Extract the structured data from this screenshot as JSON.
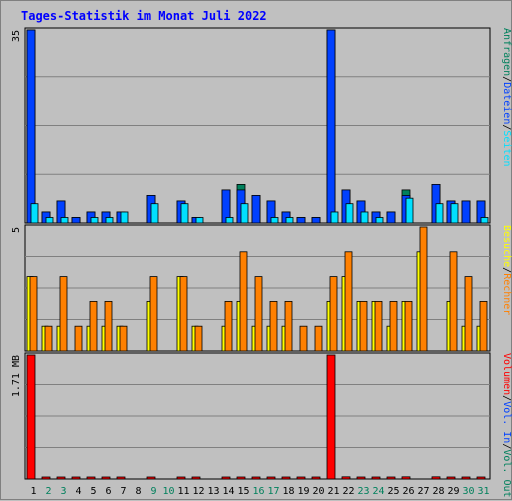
{
  "title": "Tages-Statistik im Monat Juli 2022",
  "colors": {
    "background": "#c0c0c0",
    "grid": "#808080",
    "hits": "#00805c",
    "files": "#0040ff",
    "pages": "#00e0ff",
    "visits": "#ffff00",
    "sites": "#ff8000",
    "kbytes": "#ff0000",
    "day_normal": "#000000",
    "day_weekend": "#00805c",
    "sep": "#000000"
  },
  "top_panel": {
    "ymax_label": "35",
    "legend": [
      {
        "text": "Anfragen",
        "color": "#00805c"
      },
      {
        "text": "/",
        "color": "#000000"
      },
      {
        "text": "Dateien",
        "color": "#0040ff"
      },
      {
        "text": "/",
        "color": "#000000"
      },
      {
        "text": "Seiten",
        "color": "#00e0ff"
      }
    ]
  },
  "mid_panel": {
    "ymax_label": "5",
    "legend": [
      {
        "text": "Besuche",
        "color": "#ffff00"
      },
      {
        "text": "/",
        "color": "#000000"
      },
      {
        "text": "Rechner",
        "color": "#ff8000"
      }
    ]
  },
  "bottom_panel": {
    "ymax_label": "1.71 MB",
    "legend": [
      {
        "text": "Volumen",
        "color": "#ff0000"
      },
      {
        "text": "/",
        "color": "#000000"
      },
      {
        "text": "Vol. In",
        "color": "#0040ff"
      },
      {
        "text": "/",
        "color": "#000000"
      },
      {
        "text": "Vol. Out",
        "color": "#00805c"
      }
    ]
  },
  "chart_data": {
    "type": "bar",
    "title": "Tages-Statistik im Monat Juli 2022",
    "categories": [
      "1",
      "2",
      "3",
      "4",
      "5",
      "6",
      "7",
      "8",
      "9",
      "10",
      "11",
      "12",
      "13",
      "14",
      "15",
      "16",
      "17",
      "18",
      "19",
      "20",
      "21",
      "22",
      "23",
      "24",
      "25",
      "26",
      "27",
      "28",
      "29",
      "30",
      "31"
    ],
    "weekend_days": [
      "2",
      "3",
      "9",
      "10",
      "16",
      "17",
      "23",
      "24",
      "30",
      "31"
    ],
    "panels": [
      {
        "name": "Anfragen / Dateien / Seiten",
        "ylim": [
          0,
          35
        ],
        "series": [
          {
            "name": "Anfragen",
            "values": [
              35,
              2,
              4,
              1,
              2,
              2,
              2,
              0,
              5,
              0,
              4,
              1,
              0,
              6,
              7,
              5,
              4,
              2,
              1,
              1,
              35,
              6,
              4,
              2,
              2,
              6,
              0,
              7,
              4,
              4,
              4
            ]
          },
          {
            "name": "Dateien",
            "values": [
              35,
              2,
              4,
              1,
              2,
              2,
              2,
              0,
              5,
              0,
              4,
              1,
              0,
              6,
              6,
              5,
              4,
              2,
              1,
              1,
              35,
              6,
              4,
              2,
              2,
              5,
              0,
              7,
              4,
              4,
              4
            ]
          },
          {
            "name": "Seiten",
            "values": [
              3.5,
              1,
              1,
              0,
              1,
              1,
              2,
              0,
              3.5,
              0,
              3.5,
              1,
              0,
              1,
              3.5,
              0,
              1,
              1,
              0,
              0,
              2,
              3.5,
              2,
              1,
              0,
              4.5,
              0,
              3.5,
              3.5,
              0,
              1
            ]
          }
        ]
      },
      {
        "name": "Besuche / Rechner",
        "ylim": [
          0,
          5
        ],
        "series": [
          {
            "name": "Besuche",
            "values": [
              3,
              1,
              1,
              0,
              1,
              1,
              1,
              0,
              2,
              0,
              3,
              1,
              0,
              1,
              2,
              1,
              1,
              1,
              0,
              0,
              2,
              3,
              2,
              2,
              1,
              2,
              4,
              0,
              2,
              1,
              1
            ]
          },
          {
            "name": "Rechner",
            "values": [
              3,
              1,
              3,
              1,
              2,
              2,
              1,
              0,
              3,
              0,
              3,
              1,
              0,
              2,
              4,
              3,
              2,
              2,
              1,
              1,
              3,
              4,
              2,
              2,
              2,
              2,
              5,
              0,
              4,
              3,
              2
            ]
          }
        ]
      },
      {
        "name": "Volumen",
        "ylim": [
          0,
          1.71
        ],
        "unit": "MB",
        "series": [
          {
            "name": "Volumen",
            "values": [
              1.71,
              0.02,
              0.02,
              0.02,
              0.02,
              0.02,
              0.02,
              0,
              0.02,
              0,
              0.02,
              0.02,
              0,
              0.02,
              0.02,
              0.02,
              0.02,
              0.02,
              0.02,
              0.02,
              1.71,
              0.03,
              0.02,
              0.02,
              0.02,
              0.03,
              0,
              0.03,
              0.02,
              0.02,
              0.02
            ]
          }
        ]
      }
    ]
  }
}
